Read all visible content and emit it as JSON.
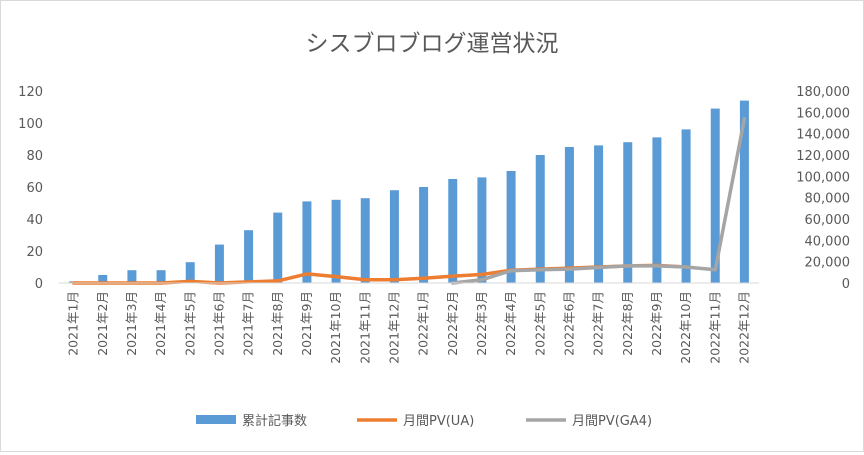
{
  "chart_data": {
    "type": "bar",
    "title": "シスブロブログ運営状況",
    "categories": [
      "2021年1月",
      "2021年2月",
      "2021年3月",
      "2021年4月",
      "2021年5月",
      "2021年6月",
      "2021年7月",
      "2021年8月",
      "2021年9月",
      "2021年10月",
      "2021年11月",
      "2021年12月",
      "2022年1月",
      "2022年2月",
      "2022年3月",
      "2022年4月",
      "2022年5月",
      "2022年6月",
      "2022年7月",
      "2022年8月",
      "2022年9月",
      "2022年10月",
      "2022年11月",
      "2022年12月"
    ],
    "series": [
      {
        "name": "累計記事数",
        "type": "bar",
        "axis": "left",
        "color": "#5b9bd5",
        "values": [
          1,
          5,
          8,
          8,
          13,
          24,
          33,
          44,
          51,
          52,
          53,
          58,
          60,
          65,
          66,
          70,
          80,
          85,
          86,
          88,
          91,
          96,
          109,
          114
        ]
      },
      {
        "name": "月間PV(UA)",
        "type": "line",
        "axis": "right",
        "color": "#ed7d31",
        "values": [
          0,
          0,
          0,
          0,
          1500,
          0,
          1000,
          2000,
          8500,
          6000,
          3000,
          3000,
          4500,
          6500,
          8000,
          12000,
          13000,
          14000,
          15000,
          16000,
          16500,
          15000,
          null,
          null
        ]
      },
      {
        "name": "月間PV(GA4)",
        "type": "line",
        "axis": "right",
        "color": "#a5a5a5",
        "values": [
          null,
          null,
          null,
          null,
          null,
          null,
          null,
          null,
          null,
          null,
          null,
          null,
          null,
          0,
          3000,
          11500,
          12500,
          13000,
          14500,
          16000,
          16000,
          15000,
          12500,
          154000
        ]
      }
    ],
    "left_axis": {
      "min": 0,
      "max": 120,
      "ticks": [
        "0",
        "20",
        "40",
        "60",
        "80",
        "100",
        "120"
      ]
    },
    "right_axis": {
      "min": 0,
      "max": 180000,
      "ticks": [
        "0",
        "20,000",
        "40,000",
        "60,000",
        "80,000",
        "100,000",
        "120,000",
        "140,000",
        "160,000",
        "180,000"
      ]
    },
    "grid": false,
    "legend_position": "bottom"
  }
}
